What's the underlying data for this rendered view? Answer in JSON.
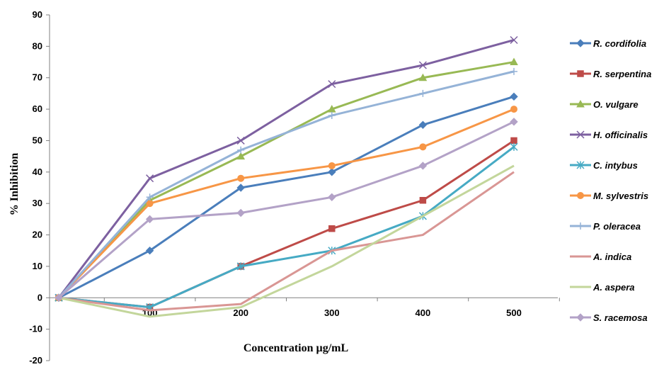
{
  "chart_data": {
    "type": "line",
    "title": "",
    "xlabel": "Concentration µg/mL",
    "ylabel": "% Inhibition",
    "ylim": [
      -20,
      90
    ],
    "yticks": [
      "-20",
      "-10",
      "0",
      "10",
      "20",
      "30",
      "40",
      "50",
      "60",
      "70",
      "80",
      "90"
    ],
    "categories": [
      "",
      "100",
      "200",
      "300",
      "400",
      "500"
    ],
    "x": [
      0,
      100,
      200,
      300,
      400,
      500
    ],
    "grid": false,
    "legend_position": "right",
    "series": [
      {
        "name": "R. cordifolia",
        "color": "#4A7EBB",
        "marker": "diamond",
        "values": [
          0,
          15,
          35,
          40,
          55,
          64
        ]
      },
      {
        "name": "R. serpentina",
        "color": "#BE4B48",
        "marker": "square",
        "values": [
          0,
          -3,
          10,
          22,
          31,
          50
        ]
      },
      {
        "name": "O. vulgare",
        "color": "#98B954",
        "marker": "triangle",
        "values": [
          0,
          31,
          45,
          60,
          70,
          75
        ]
      },
      {
        "name": "H. officinalis",
        "color": "#7D60A0",
        "marker": "x",
        "values": [
          0,
          38,
          50,
          68,
          74,
          82
        ]
      },
      {
        "name": "C. intybus",
        "color": "#46AAC4",
        "marker": "star",
        "values": [
          0,
          -3,
          10,
          15,
          26,
          48
        ]
      },
      {
        "name": "M. sylvestris",
        "color": "#F79646",
        "marker": "circle",
        "values": [
          0,
          30,
          38,
          42,
          48,
          60
        ]
      },
      {
        "name": "P. oleracea",
        "color": "#95B3D7",
        "marker": "plus",
        "values": [
          0,
          32,
          47,
          58,
          65,
          72
        ]
      },
      {
        "name": "A. indica",
        "color": "#D99694",
        "marker": "none",
        "values": [
          0,
          -4,
          -2,
          15,
          20,
          40
        ]
      },
      {
        "name": "A. aspera",
        "color": "#C3D69B",
        "marker": "none",
        "values": [
          0,
          -6,
          -3,
          10,
          26,
          42
        ]
      },
      {
        "name": "S. racemosa",
        "color": "#B3A2C7",
        "marker": "diamond",
        "values": [
          0,
          25,
          27,
          32,
          42,
          56
        ]
      }
    ]
  }
}
